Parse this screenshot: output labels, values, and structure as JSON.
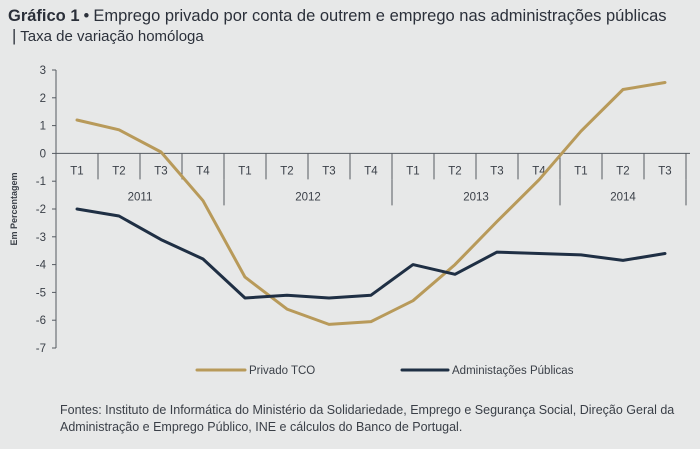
{
  "title": {
    "prefix": "Gráfico 1",
    "bullet": "•",
    "main": "Emprego privado por conta de outrem e emprego nas administrações públicas",
    "divider": "|",
    "subtitle": "Taxa de variação homóloga"
  },
  "source": "Fontes: Instituto de Informática do Ministério da Solidariedade, Emprego e Segurança Social, Direção Geral da Administração e Emprego Público, INE e cálculos do Banco de Portugal.",
  "chart_data": {
    "type": "line",
    "ylabel": "Em Percentagem",
    "ylim": [
      -7,
      3
    ],
    "yticks": [
      3,
      2,
      1,
      0,
      -1,
      -2,
      -3,
      -4,
      -5,
      -6,
      -7
    ],
    "quarters": [
      "T1",
      "T2",
      "T3",
      "T4",
      "T1",
      "T2",
      "T3",
      "T4",
      "T1",
      "T2",
      "T3",
      "T4",
      "T1",
      "T2",
      "T3"
    ],
    "years": [
      {
        "label": "2011",
        "count": 4
      },
      {
        "label": "2012",
        "count": 4
      },
      {
        "label": "2013",
        "count": 4
      },
      {
        "label": "2014",
        "count": 3
      }
    ],
    "series": [
      {
        "name": "Privado TCO",
        "color": "#b89a5a",
        "values": [
          1.2,
          0.85,
          0.05,
          -1.7,
          -4.45,
          -5.6,
          -6.15,
          -6.05,
          -5.3,
          -4.0,
          -2.45,
          -0.95,
          0.8,
          2.3,
          2.55
        ]
      },
      {
        "name": "Administações Públicas",
        "color": "#1f2f44",
        "values": [
          -2.0,
          -2.25,
          -3.1,
          -3.8,
          -5.2,
          -5.1,
          -5.2,
          -5.1,
          -4.0,
          -4.35,
          -3.55,
          -3.6,
          -3.65,
          -3.85,
          -3.6
        ]
      }
    ]
  }
}
